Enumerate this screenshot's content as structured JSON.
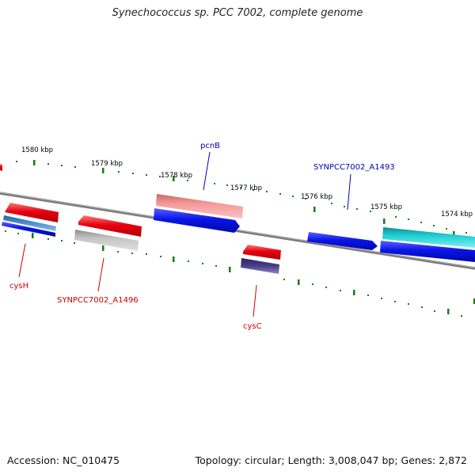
{
  "title": "Synechococcus sp. PCC 7002, complete genome",
  "footer": {
    "accession": "Accession: NC_010475",
    "summary": "Topology: circular; Length: 3,008,047 bp; Genes: 2,872"
  },
  "colors": {
    "forward_gene": "#e8000e",
    "reverse_gene": "#0a14e6",
    "pale_red": "#f08c90",
    "grey_gene": "#b4b4b4",
    "teal_gene": "#19c2c8",
    "purple_gene": "#4a3f8a",
    "label_blue": "#0000bb",
    "label_red": "#cc0000",
    "backbone": "#808080",
    "tick": "#1a7a1a"
  },
  "ticks": [
    {
      "label": "1580 kbp"
    },
    {
      "label": "1579 kbp"
    },
    {
      "label": "1578 kbp"
    },
    {
      "label": "1577 kbp"
    },
    {
      "label": "1576 kbp"
    },
    {
      "label": "1575 kbp"
    },
    {
      "label": "1574 kbp"
    }
  ],
  "genes_labeled": [
    {
      "name": "pcnB",
      "color": "blue"
    },
    {
      "name": "SYNPCC7002_A1493",
      "color": "blue"
    },
    {
      "name": "cysH",
      "color": "red"
    },
    {
      "name": "SYNPCC7002_A1496",
      "color": "red"
    },
    {
      "name": "cysC",
      "color": "red"
    }
  ]
}
